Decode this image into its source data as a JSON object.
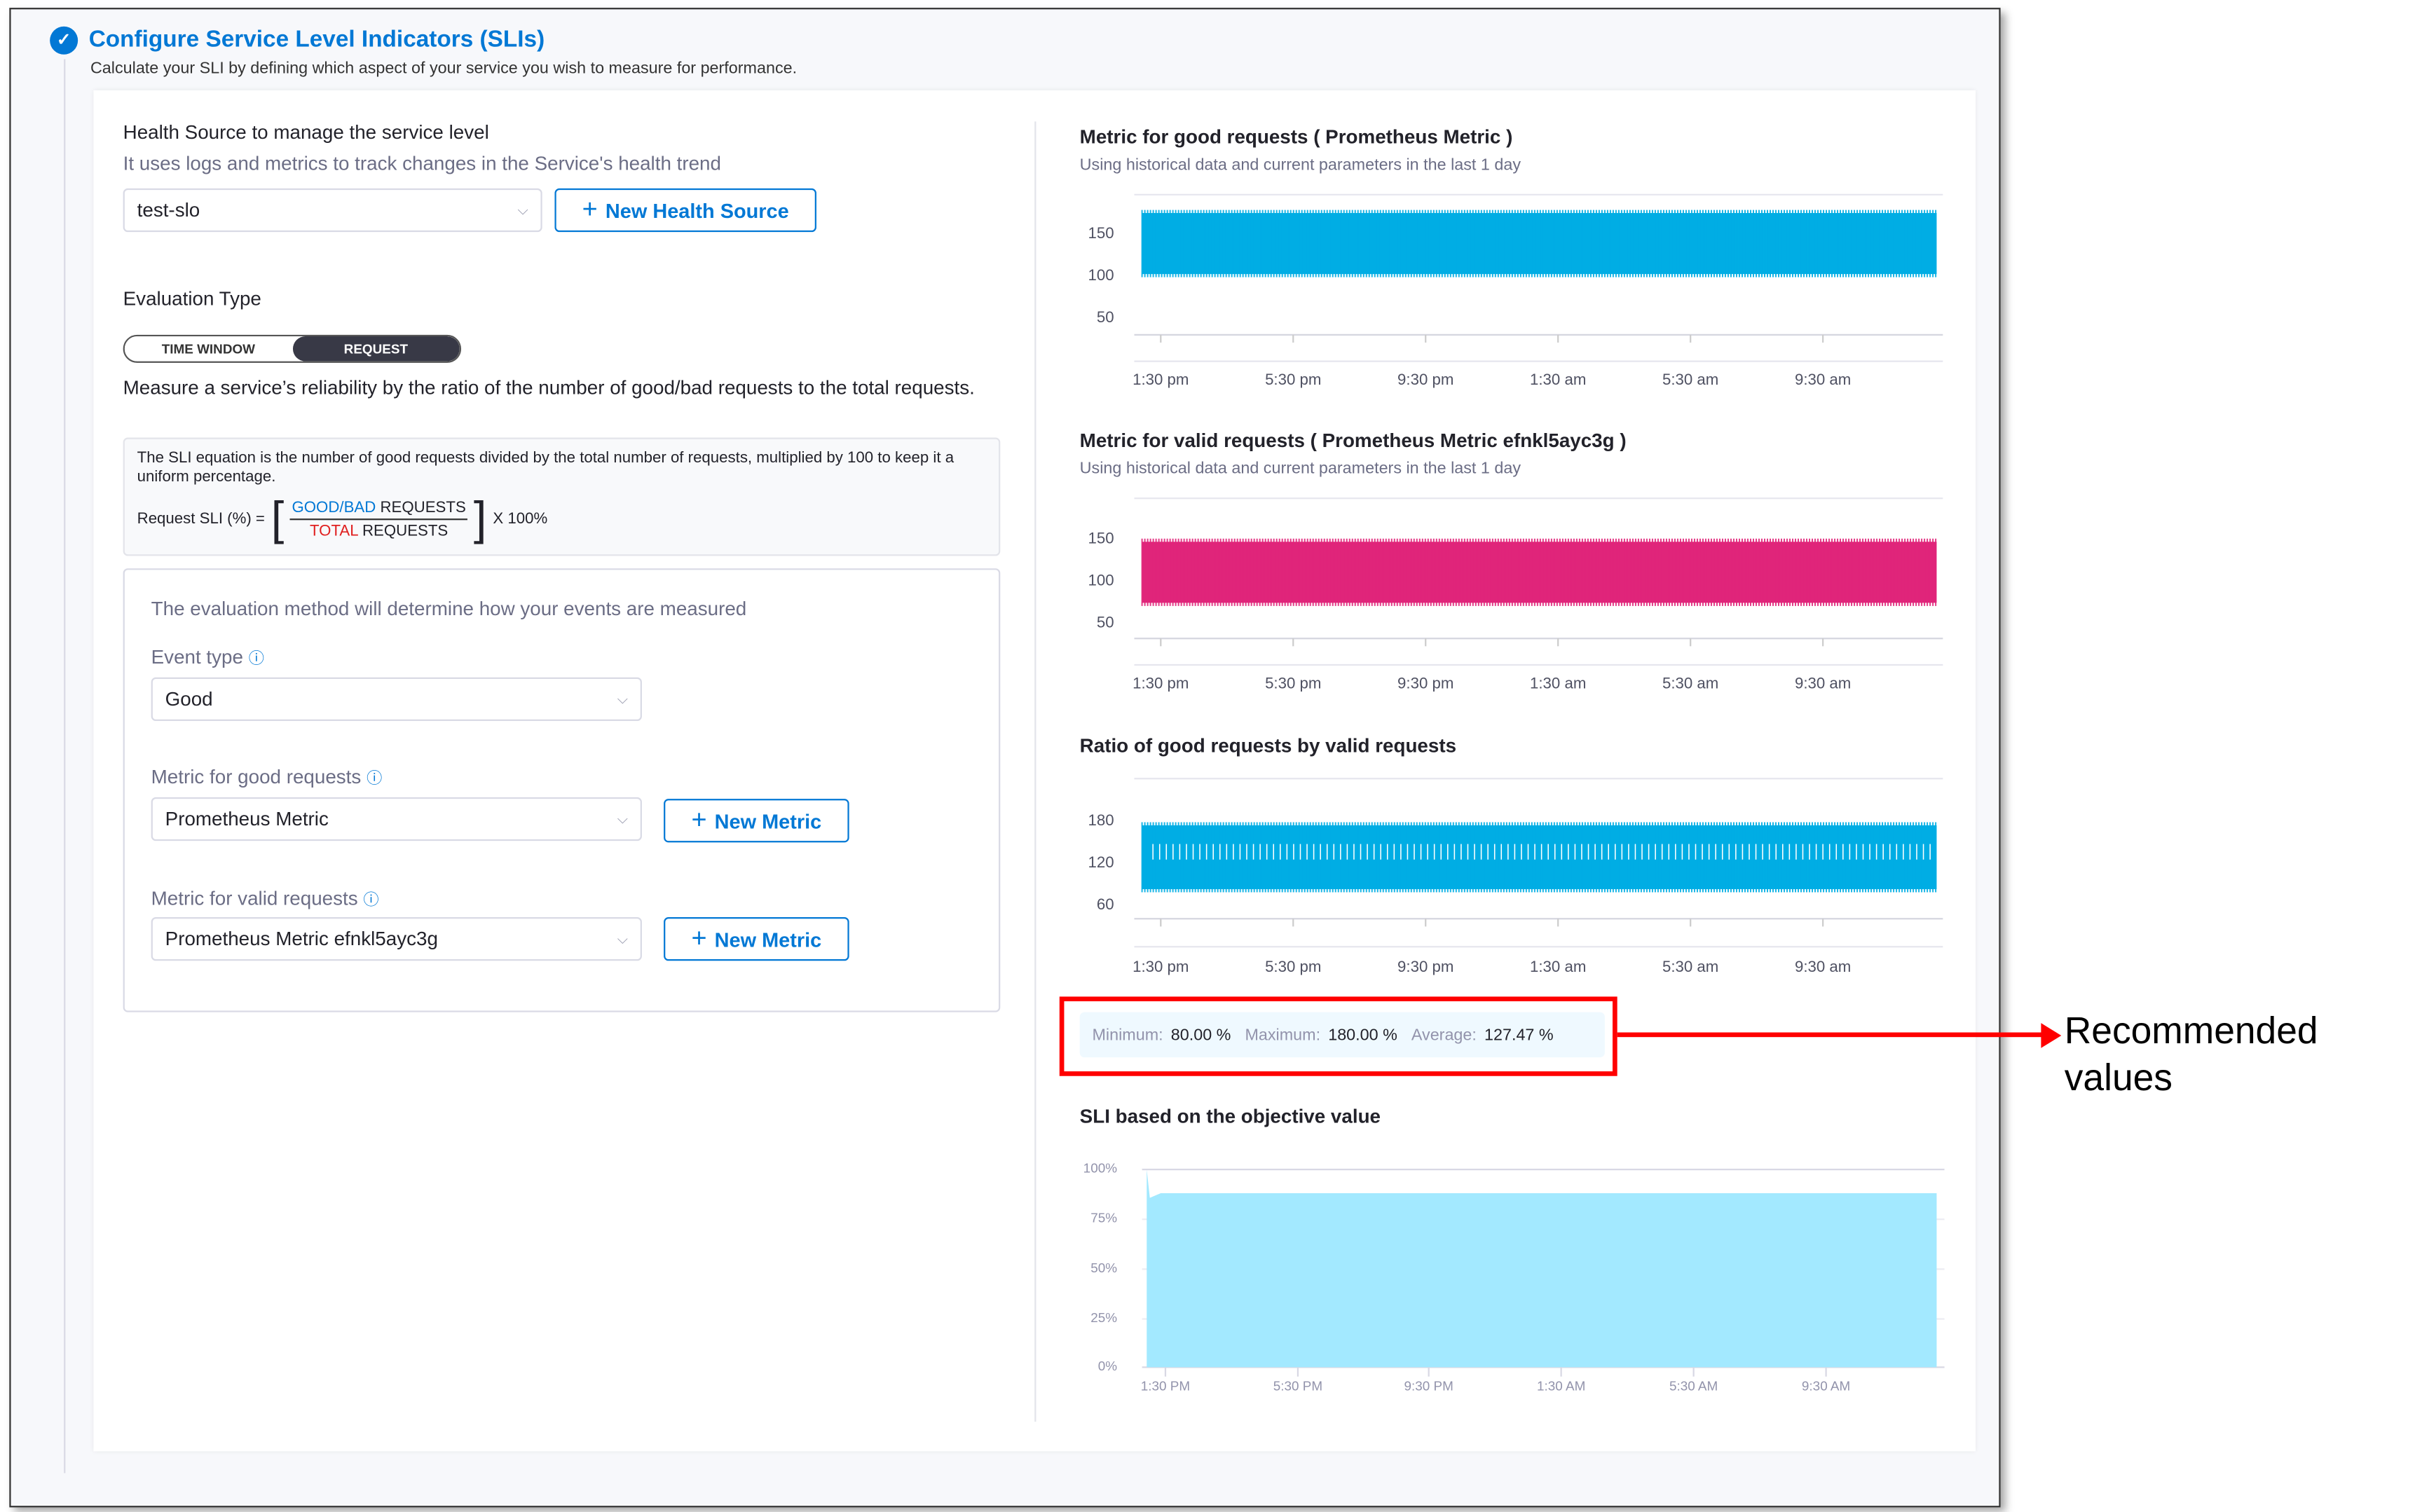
{
  "header": {
    "title": "Configure Service Level Indicators (SLIs)",
    "subtitle": "Calculate your SLI by defining which aspect of your service you wish to measure for performance."
  },
  "health_source": {
    "heading": "Health Source to manage the service level",
    "description": "It uses logs and metrics to track changes in the Service's health trend",
    "selected": "test-slo",
    "new_button": "New Health Source"
  },
  "evaluation": {
    "heading": "Evaluation Type",
    "options": [
      "TIME WINDOW",
      "REQUEST"
    ],
    "selected": "REQUEST",
    "description": "Measure a service’s reliability by the ratio of the number of good/bad requests to the total requests."
  },
  "equation": {
    "text": "The SLI equation is the number of good requests divided by the total number of requests, multiplied by 100 to keep it a uniform percentage.",
    "lhs": "Request SLI (%) =",
    "num_colored": "GOOD/BAD",
    "num_rest": " REQUESTS",
    "den_colored": "TOTAL",
    "den_rest": " REQUESTS",
    "mult": "X 100%"
  },
  "method": {
    "intro": "The evaluation method will determine how your events are measured",
    "event_type_label": "Event type",
    "event_type": "Good",
    "good_label": "Metric for good requests",
    "good_value": "Prometheus Metric",
    "valid_label": "Metric for valid requests",
    "valid_value": "Prometheus Metric efnkl5ayc3g",
    "new_metric": "New Metric"
  },
  "stats": {
    "min_label": "Minimum:",
    "min": "80.00 %",
    "max_label": "Maximum:",
    "max": "180.00 %",
    "avg_label": "Average:",
    "avg": "127.47 %"
  },
  "annotation": {
    "line1": "Recommended",
    "line2": "values",
    "color": "#ff0000"
  },
  "chart_data": [
    {
      "type": "bar",
      "title": "Metric for good requests ( Prometheus Metric )",
      "subtitle": "Using historical data and current parameters in the last 1 day",
      "yticks": [
        "150",
        "100",
        "50"
      ],
      "xticks": [
        "1:30 pm",
        "5:30 pm",
        "9:30 pm",
        "1:30 am",
        "5:30 am",
        "9:30 am"
      ],
      "y_range_observed": [
        100,
        180
      ],
      "color": "#00ade4"
    },
    {
      "type": "bar",
      "title": "Metric for valid requests ( Prometheus Metric efnkl5ayc3g )",
      "subtitle": "Using historical data and current parameters in the last 1 day",
      "yticks": [
        "150",
        "100",
        "50"
      ],
      "xticks": [
        "1:30 pm",
        "5:30 pm",
        "9:30 pm",
        "1:30 am",
        "5:30 am",
        "9:30 am"
      ],
      "y_range_observed": [
        72,
        152
      ],
      "color": "#e0257a"
    },
    {
      "type": "bar",
      "title": "Ratio of good requests by valid requests",
      "yticks": [
        "180",
        "120",
        "60"
      ],
      "xticks": [
        "1:30 pm",
        "5:30 pm",
        "9:30 pm",
        "1:30 am",
        "5:30 am",
        "9:30 am"
      ],
      "y_range_observed": [
        80,
        180
      ],
      "color": "#00ade4"
    },
    {
      "type": "area",
      "title": "SLI based on the objective value",
      "yticks": [
        "100%",
        "75%",
        "50%",
        "25%",
        "0%"
      ],
      "xticks": [
        "1:30 PM",
        "5:30 PM",
        "9:30 PM",
        "1:30 AM",
        "5:30 AM",
        "9:30 AM"
      ],
      "ylim": [
        0,
        100
      ],
      "start_value": 100,
      "steady_value": 88,
      "color": "#a3e9ff"
    }
  ]
}
